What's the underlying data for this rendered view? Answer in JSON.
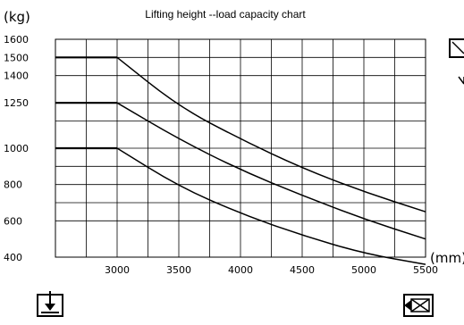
{
  "chart_data": {
    "type": "line",
    "title": "Lifting height --load capacity chart",
    "y_unit": "(kg)",
    "x_unit": "(mm)",
    "x_range": [
      2500,
      5500
    ],
    "y_range": [
      400,
      1600
    ],
    "x_ticks": [
      3000,
      3500,
      4000,
      4500,
      5000,
      5500
    ],
    "y_ticks": [
      400,
      600,
      800,
      1000,
      1250,
      1400,
      1500,
      1600
    ],
    "grid": true,
    "series": [
      {
        "x": [
          2500,
          3000,
          3500,
          4000,
          4500,
          5000,
          5500
        ],
        "y": [
          1500,
          1500,
          1230,
          1050,
          890,
          760,
          650
        ]
      },
      {
        "x": [
          2500,
          3000,
          3500,
          4000,
          4500,
          5000,
          5500
        ],
        "y": [
          1250,
          1250,
          1050,
          880,
          740,
          610,
          500
        ]
      },
      {
        "x": [
          2500,
          3000,
          3500,
          4000,
          4500,
          5000,
          5500
        ],
        "y": [
          1000,
          1000,
          790,
          640,
          520,
          420,
          360
        ]
      }
    ]
  },
  "icons": {
    "bottom_left": "lift-down-arrow-icon",
    "bottom_right": "load-box-icon",
    "top_right": "load-box-icon"
  }
}
